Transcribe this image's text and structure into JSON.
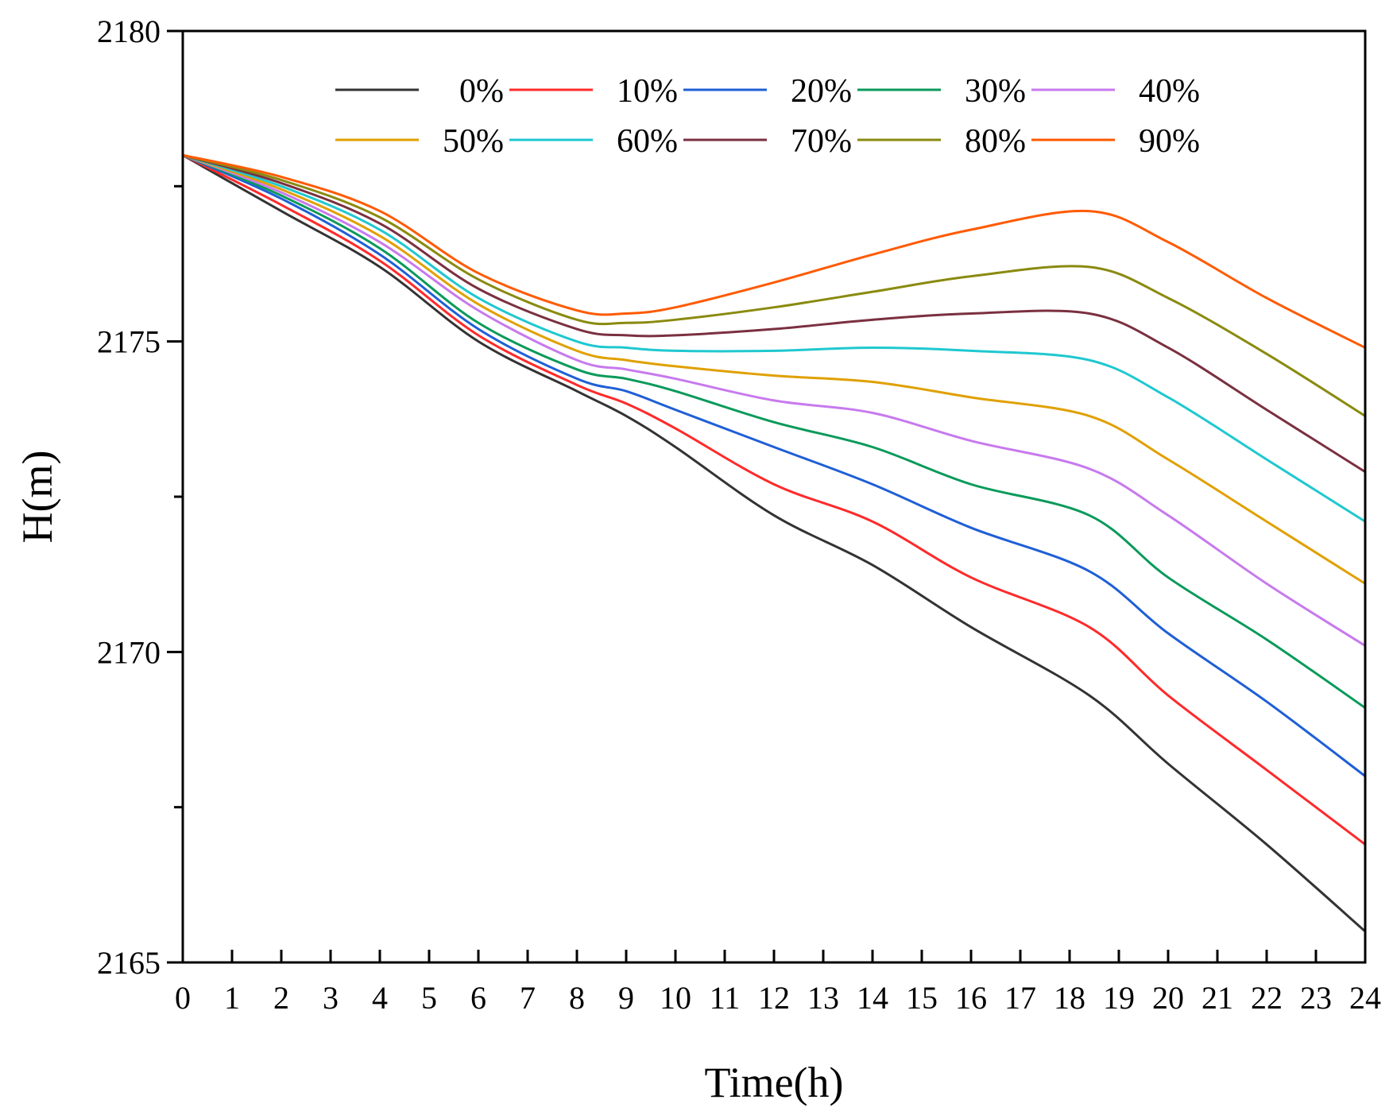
{
  "chart_data": {
    "type": "line",
    "title": "",
    "xlabel": "Time(h)",
    "ylabel": "H(m)",
    "xlim": [
      0,
      24
    ],
    "ylim": [
      2165,
      2180
    ],
    "xticks": [
      0,
      1,
      2,
      3,
      4,
      5,
      6,
      7,
      8,
      9,
      10,
      11,
      12,
      13,
      14,
      15,
      16,
      17,
      18,
      19,
      20,
      21,
      22,
      23,
      24
    ],
    "yticks": [
      2165,
      2170,
      2175,
      2180
    ],
    "grid": false,
    "legend_position": "top",
    "x": [
      0,
      2,
      4,
      6,
      8,
      9,
      10,
      12,
      14,
      16,
      18.4,
      20,
      22,
      24
    ],
    "series": [
      {
        "name": "0%",
        "color": "#333333",
        "values": [
          2178.0,
          2177.1,
          2176.2,
          2175.0,
          2174.2,
          2173.8,
          2173.3,
          2172.2,
          2171.4,
          2170.4,
          2169.3,
          2168.2,
          2166.9,
          2165.5
        ]
      },
      {
        "name": "10%",
        "color": "#ff2a2a",
        "values": [
          2178.0,
          2177.2,
          2176.3,
          2175.1,
          2174.3,
          2174.0,
          2173.6,
          2172.7,
          2172.1,
          2171.2,
          2170.4,
          2169.3,
          2168.1,
          2166.9
        ]
      },
      {
        "name": "20%",
        "color": "#1f5fd6",
        "values": [
          2178.0,
          2177.3,
          2176.4,
          2175.2,
          2174.4,
          2174.2,
          2173.9,
          2173.3,
          2172.7,
          2172.0,
          2171.3,
          2170.3,
          2169.2,
          2168.0
        ]
      },
      {
        "name": "30%",
        "color": "#0a9a5a",
        "values": [
          2178.0,
          2177.35,
          2176.5,
          2175.3,
          2174.55,
          2174.4,
          2174.2,
          2173.7,
          2173.3,
          2172.7,
          2172.2,
          2171.2,
          2170.2,
          2169.1
        ]
      },
      {
        "name": "40%",
        "color": "#c77aed",
        "values": [
          2178.0,
          2177.4,
          2176.6,
          2175.5,
          2174.7,
          2174.55,
          2174.4,
          2174.05,
          2173.85,
          2173.4,
          2172.95,
          2172.2,
          2171.1,
          2170.1
        ]
      },
      {
        "name": "50%",
        "color": "#e0a000",
        "values": [
          2178.0,
          2177.45,
          2176.7,
          2175.6,
          2174.85,
          2174.7,
          2174.6,
          2174.45,
          2174.35,
          2174.1,
          2173.8,
          2173.1,
          2172.1,
          2171.1
        ]
      },
      {
        "name": "60%",
        "color": "#1fc8d0",
        "values": [
          2178.0,
          2177.5,
          2176.8,
          2175.7,
          2175.0,
          2174.9,
          2174.85,
          2174.85,
          2174.9,
          2174.85,
          2174.7,
          2174.1,
          2173.1,
          2172.1
        ]
      },
      {
        "name": "70%",
        "color": "#7a3040",
        "values": [
          2178.0,
          2177.55,
          2176.9,
          2175.85,
          2175.2,
          2175.1,
          2175.1,
          2175.2,
          2175.35,
          2175.45,
          2175.45,
          2174.9,
          2173.9,
          2172.9
        ]
      },
      {
        "name": "80%",
        "color": "#8a8a10",
        "values": [
          2178.0,
          2177.6,
          2177.0,
          2176.0,
          2175.35,
          2175.3,
          2175.35,
          2175.55,
          2175.8,
          2176.05,
          2176.2,
          2175.7,
          2174.8,
          2173.8
        ]
      },
      {
        "name": "90%",
        "color": "#ff5a00",
        "values": [
          2178.0,
          2177.65,
          2177.1,
          2176.1,
          2175.5,
          2175.45,
          2175.55,
          2175.95,
          2176.4,
          2176.8,
          2177.1,
          2176.6,
          2175.7,
          2174.9
        ]
      }
    ]
  }
}
